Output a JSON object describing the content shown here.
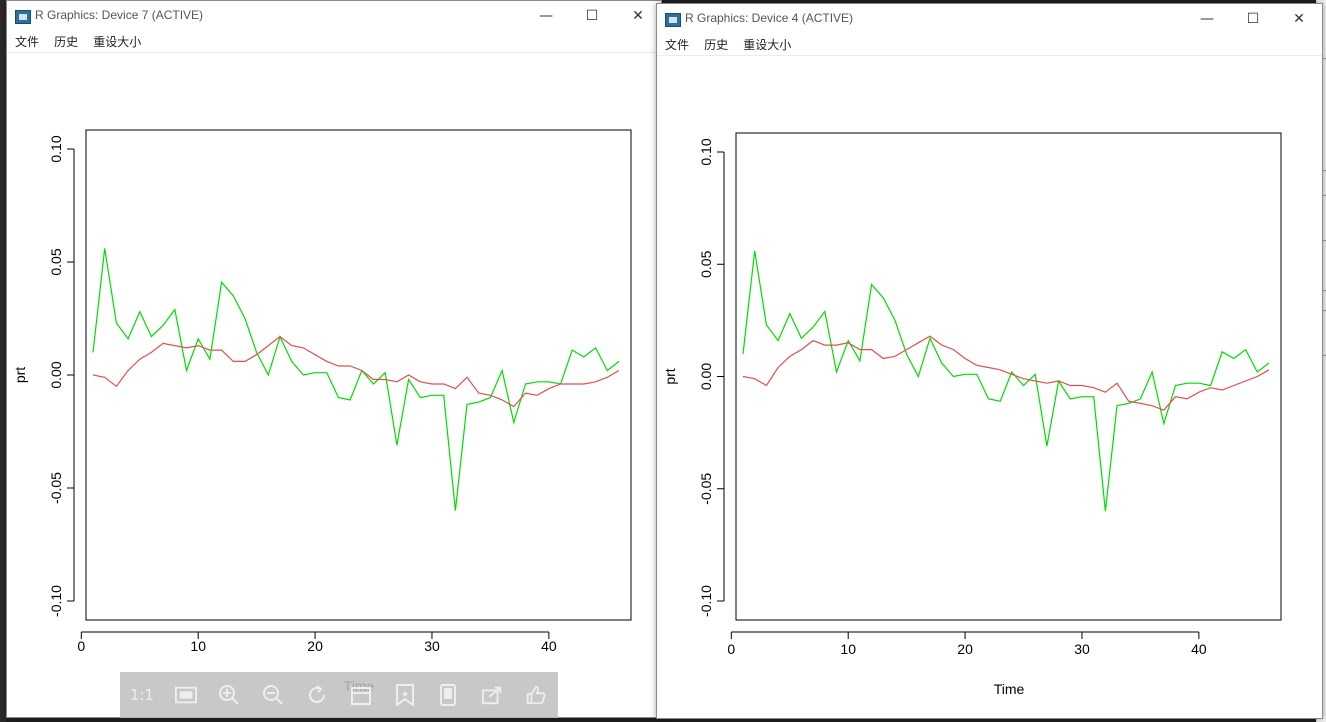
{
  "windows": [
    {
      "title": "R Graphics: Device 7 (ACTIVE)",
      "menu": [
        "文件",
        "历史",
        "重设大小"
      ]
    },
    {
      "title": "R Graphics: Device 4 (ACTIVE)",
      "menu": [
        "文件",
        "历史",
        "重设大小"
      ]
    }
  ],
  "window_controls": {
    "minimize": "—",
    "maximize": "☐",
    "close": "✕"
  },
  "chart_data": [
    {
      "type": "line",
      "xlabel": "Time",
      "ylabel": "prt",
      "xlim": [
        1,
        46
      ],
      "ylim": [
        -0.1,
        0.1
      ],
      "x_ticks": [
        "0",
        "10",
        "20",
        "30",
        "40"
      ],
      "y_ticks": [
        "-0.10",
        "-0.05",
        "0.00",
        "0.05",
        "0.10"
      ],
      "grid": false,
      "series": [
        {
          "color": "#00dd00",
          "x_start": 1,
          "values": [
            0.01,
            0.056,
            0.023,
            0.016,
            0.028,
            0.017,
            0.022,
            0.029,
            0.002,
            0.016,
            0.007,
            0.041,
            0.035,
            0.025,
            0.01,
            0.0,
            0.017,
            0.006,
            0.0,
            0.001,
            0.001,
            -0.01,
            -0.011,
            0.002,
            -0.004,
            0.001,
            -0.031,
            -0.002,
            -0.01,
            -0.009,
            -0.009,
            -0.06,
            -0.013,
            -0.012,
            -0.01,
            0.002,
            -0.021,
            -0.004,
            -0.003,
            -0.003,
            -0.004,
            0.011,
            0.008,
            0.012,
            0.002,
            0.006
          ]
        },
        {
          "color": "#e05050",
          "x_start": 1,
          "values": [
            0.0,
            -0.001,
            -0.005,
            0.002,
            0.007,
            0.01,
            0.014,
            0.013,
            0.012,
            0.013,
            0.011,
            0.011,
            0.006,
            0.006,
            0.009,
            0.013,
            0.017,
            0.013,
            0.012,
            0.009,
            0.006,
            0.004,
            0.004,
            0.002,
            -0.002,
            -0.002,
            -0.003,
            0.0,
            -0.003,
            -0.004,
            -0.004,
            -0.006,
            -0.001,
            -0.008,
            -0.009,
            -0.011,
            -0.014,
            -0.008,
            -0.009,
            -0.006,
            -0.004,
            -0.004,
            -0.004,
            -0.003,
            -0.001,
            0.002
          ]
        }
      ]
    },
    {
      "type": "line",
      "xlabel": "Time",
      "ylabel": "prt",
      "xlim": [
        1,
        46
      ],
      "ylim": [
        -0.1,
        0.1
      ],
      "x_ticks": [
        "0",
        "10",
        "20",
        "30",
        "40"
      ],
      "y_ticks": [
        "-0.10",
        "-0.05",
        "0.00",
        "0.05",
        "0.10"
      ],
      "grid": false,
      "series": [
        {
          "color": "#00dd00",
          "x_start": 1,
          "values": [
            0.01,
            0.056,
            0.023,
            0.016,
            0.028,
            0.017,
            0.022,
            0.029,
            0.002,
            0.016,
            0.007,
            0.041,
            0.035,
            0.025,
            0.01,
            0.0,
            0.017,
            0.006,
            0.0,
            0.001,
            0.001,
            -0.01,
            -0.011,
            0.002,
            -0.004,
            0.001,
            -0.031,
            -0.002,
            -0.01,
            -0.009,
            -0.009,
            -0.06,
            -0.013,
            -0.012,
            -0.01,
            0.002,
            -0.021,
            -0.004,
            -0.003,
            -0.003,
            -0.004,
            0.011,
            0.008,
            0.012,
            0.002,
            0.006
          ]
        },
        {
          "color": "#e05050",
          "x_start": 1,
          "values": [
            0.0,
            -0.001,
            -0.004,
            0.004,
            0.009,
            0.012,
            0.016,
            0.014,
            0.014,
            0.015,
            0.012,
            0.012,
            0.008,
            0.009,
            0.012,
            0.015,
            0.018,
            0.014,
            0.012,
            0.008,
            0.005,
            0.004,
            0.003,
            0.001,
            -0.001,
            -0.002,
            -0.003,
            -0.002,
            -0.004,
            -0.004,
            -0.005,
            -0.007,
            -0.003,
            -0.011,
            -0.012,
            -0.013,
            -0.015,
            -0.009,
            -0.01,
            -0.007,
            -0.005,
            -0.006,
            -0.004,
            -0.002,
            0.0,
            0.003
          ]
        }
      ]
    }
  ],
  "viewer_toolbar": {
    "icons": [
      "actual-size-icon",
      "fit-screen-icon",
      "zoom-in-icon",
      "zoom-out-icon",
      "rotate-icon",
      "crop-icon",
      "favorite-icon",
      "device-icon",
      "share-icon",
      "like-icon"
    ],
    "actual_size_label": "1:1"
  }
}
